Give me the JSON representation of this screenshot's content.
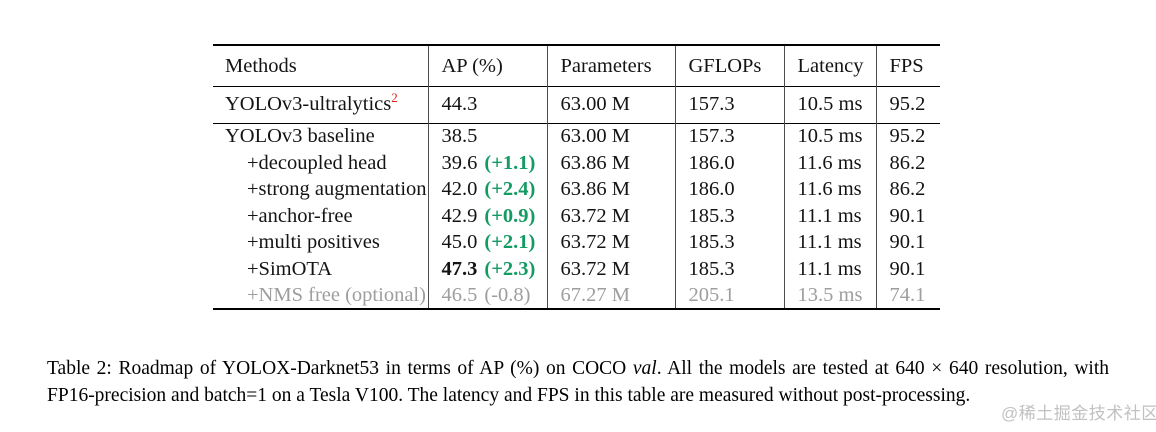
{
  "colors": {
    "delta_green": "#149b64",
    "footnote_red": "#e0271c",
    "muted_gray": "#9e9e9e",
    "rule_black": "#000000"
  },
  "table": {
    "columns": [
      "Methods",
      "AP (%)",
      "Parameters",
      "GFLOPs",
      "Latency",
      "FPS"
    ],
    "groups": [
      {
        "rows": [
          {
            "method": "YOLOv3-ultralytics",
            "superscript": "2",
            "ap": "44.3",
            "delta": "",
            "params": "63.00 M",
            "gflops": "157.3",
            "latency": "10.5 ms",
            "fps": "95.2"
          }
        ]
      },
      {
        "rows": [
          {
            "method": "YOLOv3 baseline",
            "indent": false,
            "ap": "38.5",
            "delta": "",
            "params": "63.00 M",
            "gflops": "157.3",
            "latency": "10.5 ms",
            "fps": "95.2"
          },
          {
            "method": "+decoupled head",
            "indent": true,
            "ap": "39.6",
            "delta": "(+1.1)",
            "params": "63.86 M",
            "gflops": "186.0",
            "latency": "11.6 ms",
            "fps": "86.2"
          },
          {
            "method": "+strong augmentation",
            "indent": true,
            "ap": "42.0",
            "delta": "(+2.4)",
            "params": "63.86 M",
            "gflops": "186.0",
            "latency": "11.6 ms",
            "fps": "86.2"
          },
          {
            "method": "+anchor-free",
            "indent": true,
            "ap": "42.9",
            "delta": "(+0.9)",
            "params": "63.72 M",
            "gflops": "185.3",
            "latency": "11.1 ms",
            "fps": "90.1"
          },
          {
            "method": "+multi positives",
            "indent": true,
            "ap": "45.0",
            "delta": "(+2.1)",
            "params": "63.72 M",
            "gflops": "185.3",
            "latency": "11.1 ms",
            "fps": "90.1"
          },
          {
            "method": "+SimOTA",
            "indent": true,
            "ap": "47.3",
            "ap_bold": true,
            "delta": "(+2.3)",
            "params": "63.72 M",
            "gflops": "185.3",
            "latency": "11.1 ms",
            "fps": "90.1"
          },
          {
            "method": "+NMS free (optional)",
            "indent": true,
            "muted": true,
            "ap": "46.5",
            "delta": "(-0.8)",
            "params": "67.27 M",
            "gflops": "205.1",
            "latency": "13.5 ms",
            "fps": "74.1"
          }
        ]
      }
    ]
  },
  "caption": {
    "prefix": "Table 2: Roadmap of YOLOX-Darknet53 in terms of AP (%) on COCO ",
    "italic_word": "val",
    "suffix": ". All the models are tested at 640 × 640 resolution, with FP16-precision and batch=1 on a Tesla V100. The latency and FPS in this table are measured without post-processing."
  },
  "watermark": "@稀土掘金技术社区"
}
